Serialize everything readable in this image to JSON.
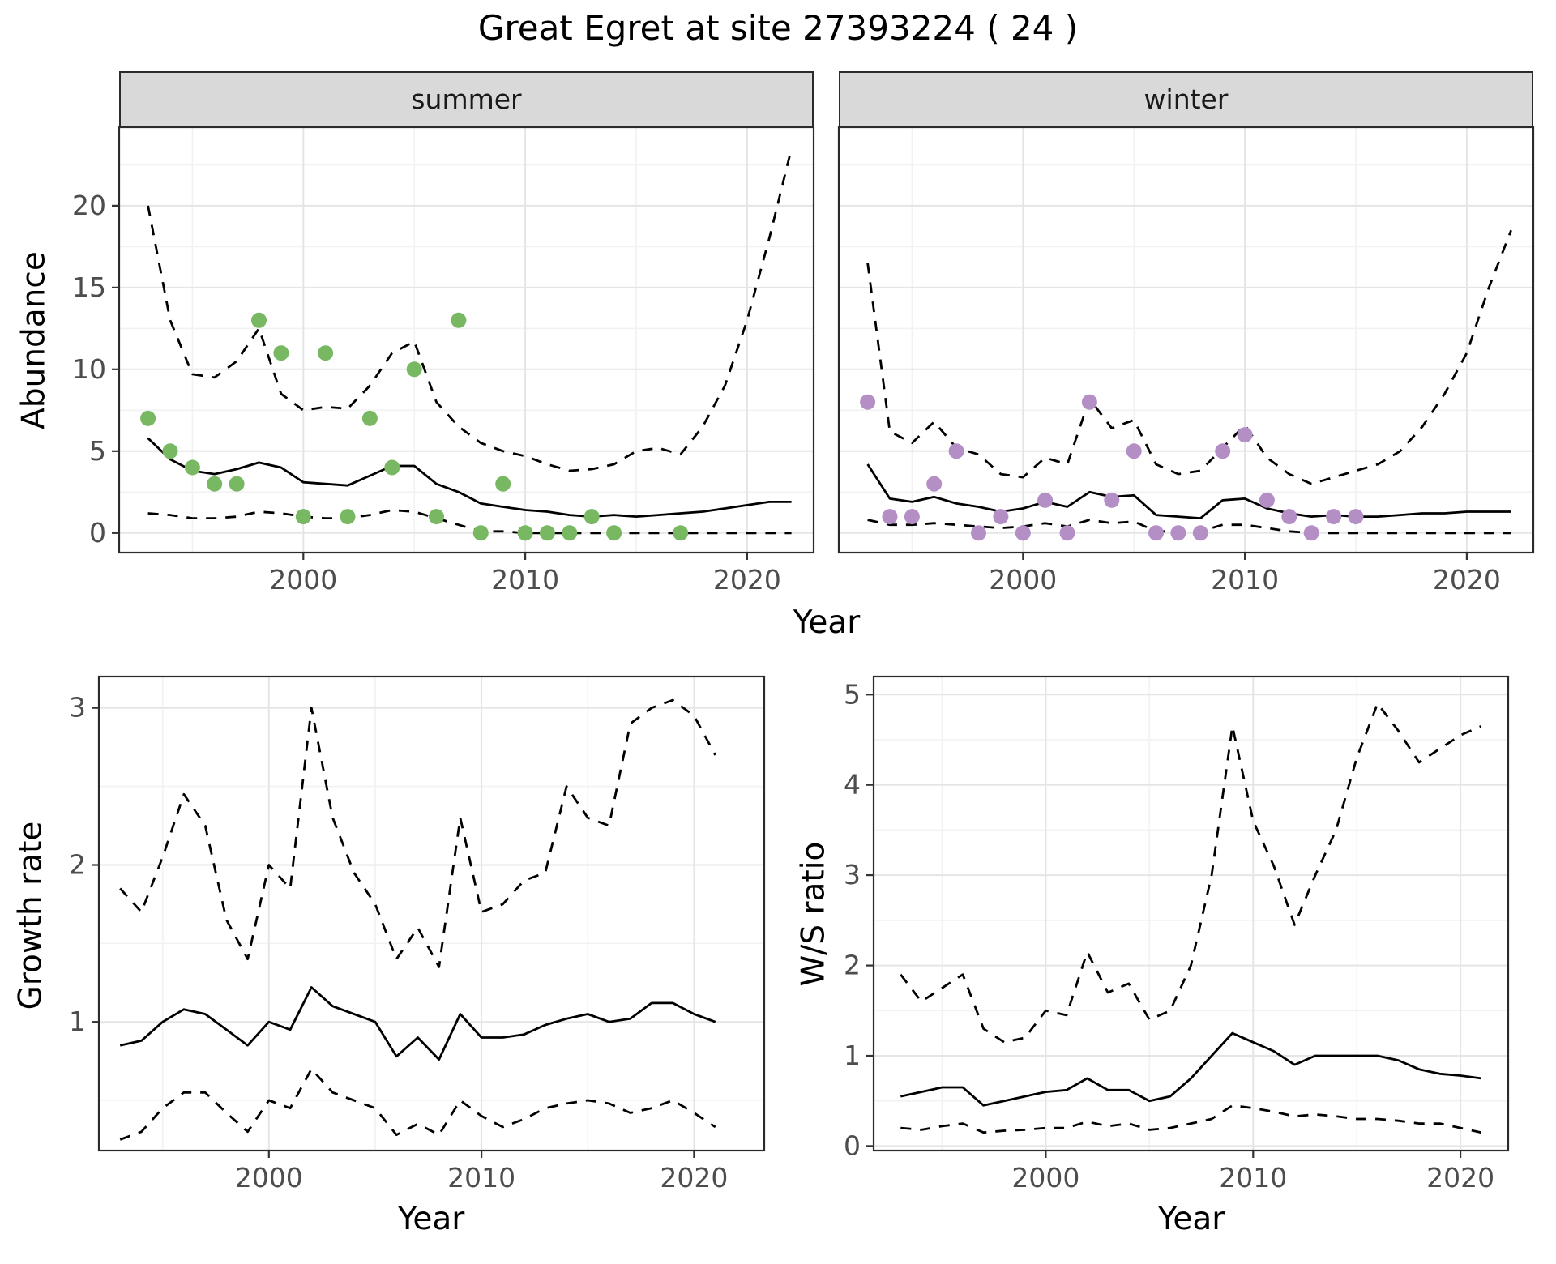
{
  "title": "Great Egret at site 27393224 ( 24 )",
  "colors": {
    "summer_points": "#78b862",
    "winter_points": "#b48fc6",
    "line": "#000000",
    "grid_major": "#e5e5e5",
    "grid_minor": "#f2f2f2",
    "strip_bg": "#d9d9d9",
    "panel_border": "#2b2b2b",
    "tick_text": "#4d4d4d"
  },
  "chart_data": [
    {
      "id": "abundance-summer",
      "type": "line",
      "facet": "summer",
      "xlabel": "Year",
      "ylabel": "Abundance",
      "xlim": [
        1991.7,
        2023.0
      ],
      "ylim": [
        -1.2,
        24.8
      ],
      "xticks": [
        2000,
        2010,
        2020
      ],
      "yticks": [
        0,
        5,
        10,
        15,
        20
      ],
      "grid": true,
      "legend": "none",
      "x": [
        1993,
        1994,
        1995,
        1996,
        1997,
        1998,
        1999,
        2000,
        2001,
        2002,
        2003,
        2004,
        2005,
        2006,
        2007,
        2008,
        2009,
        2010,
        2011,
        2012,
        2013,
        2014,
        2015,
        2016,
        2017,
        2018,
        2019,
        2020,
        2021,
        2022
      ],
      "series": [
        {
          "name": "upper-ci",
          "style": "dashed",
          "y": [
            20,
            13,
            9.7,
            9.5,
            10.5,
            12.5,
            8.5,
            7.5,
            7.7,
            7.6,
            9.0,
            11.0,
            11.7,
            8.0,
            6.5,
            5.5,
            5.0,
            4.7,
            4.2,
            3.8,
            3.9,
            4.2,
            5.0,
            5.2,
            4.8,
            6.5,
            9.0,
            13.0,
            18.0,
            23.5
          ]
        },
        {
          "name": "lower-ci",
          "style": "dashed",
          "y": [
            1.2,
            1.1,
            0.9,
            0.9,
            1.0,
            1.3,
            1.2,
            1.0,
            0.9,
            0.9,
            1.1,
            1.4,
            1.3,
            0.9,
            0.5,
            0.1,
            0.1,
            0,
            0,
            0,
            0,
            0,
            0,
            0,
            0,
            0,
            0,
            0,
            0,
            0
          ]
        },
        {
          "name": "fit",
          "style": "solid",
          "y": [
            5.8,
            4.5,
            3.8,
            3.6,
            3.9,
            4.3,
            4.0,
            3.1,
            3.0,
            2.9,
            3.5,
            4.1,
            4.1,
            3.0,
            2.5,
            1.8,
            1.6,
            1.4,
            1.3,
            1.1,
            1.0,
            1.1,
            1.0,
            1.1,
            1.2,
            1.3,
            1.5,
            1.7,
            1.9,
            1.9
          ]
        }
      ],
      "points": {
        "name": "observed-count",
        "color_key": "summer_points",
        "x": [
          1993,
          1994,
          1995,
          1996,
          1997,
          1998,
          1999,
          2000,
          2001,
          2002,
          2003,
          2004,
          2005,
          2006,
          2007,
          2008,
          2009,
          2010,
          2011,
          2012,
          2013,
          2014,
          2017
        ],
        "y": [
          7,
          5,
          4,
          3,
          3,
          13,
          11,
          1,
          11,
          1,
          7,
          4,
          10,
          1,
          13,
          0,
          3,
          0,
          0,
          0,
          1,
          0,
          0
        ]
      }
    },
    {
      "id": "abundance-winter",
      "type": "line",
      "facet": "winter",
      "xlabel": "Year",
      "ylabel": "Abundance",
      "xlim": [
        1991.7,
        2023.0
      ],
      "ylim": [
        -1.2,
        24.8
      ],
      "xticks": [
        2000,
        2010,
        2020
      ],
      "yticks": [
        0,
        5,
        10,
        15,
        20
      ],
      "grid": true,
      "legend": "none",
      "x": [
        1993,
        1994,
        1995,
        1996,
        1997,
        1998,
        1999,
        2000,
        2001,
        2002,
        2003,
        2004,
        2005,
        2006,
        2007,
        2008,
        2009,
        2010,
        2011,
        2012,
        2013,
        2014,
        2015,
        2016,
        2017,
        2018,
        2019,
        2020,
        2021,
        2022
      ],
      "series": [
        {
          "name": "upper-ci",
          "style": "dashed",
          "y": [
            16.5,
            6.2,
            5.5,
            6.8,
            5.2,
            4.8,
            3.6,
            3.4,
            4.6,
            4.2,
            8.2,
            6.4,
            6.9,
            4.2,
            3.6,
            3.8,
            5.2,
            6.6,
            4.6,
            3.6,
            3.0,
            3.4,
            3.8,
            4.2,
            5.0,
            6.5,
            8.5,
            11.0,
            15.0,
            18.5
          ]
        },
        {
          "name": "lower-ci",
          "style": "dashed",
          "y": [
            0.8,
            0.5,
            0.5,
            0.6,
            0.5,
            0.4,
            0.3,
            0.4,
            0.6,
            0.4,
            0.8,
            0.6,
            0.7,
            0.1,
            0.1,
            0.1,
            0.5,
            0.5,
            0.3,
            0.1,
            0,
            0,
            0,
            0,
            0,
            0,
            0,
            0,
            0,
            0
          ]
        },
        {
          "name": "fit",
          "style": "solid",
          "y": [
            4.2,
            2.1,
            1.9,
            2.2,
            1.8,
            1.6,
            1.3,
            1.5,
            1.9,
            1.6,
            2.5,
            2.2,
            2.3,
            1.1,
            1.0,
            0.9,
            2.0,
            2.1,
            1.5,
            1.2,
            1.0,
            1.1,
            1.0,
            1.0,
            1.1,
            1.2,
            1.2,
            1.3,
            1.3,
            1.3
          ]
        }
      ],
      "points": {
        "name": "observed-count",
        "color_key": "winter_points",
        "x": [
          1993,
          1994,
          1995,
          1996,
          1997,
          1998,
          1999,
          2000,
          2001,
          2002,
          2003,
          2004,
          2005,
          2006,
          2007,
          2008,
          2009,
          2010,
          2011,
          2012,
          2013,
          2014,
          2015
        ],
        "y": [
          8,
          1,
          1,
          3,
          5,
          0,
          1,
          0,
          2,
          0,
          8,
          2,
          5,
          0,
          0,
          0,
          5,
          6,
          2,
          1,
          0,
          1,
          1
        ]
      }
    },
    {
      "id": "growth-rate",
      "type": "line",
      "xlabel": "Year",
      "ylabel": "Growth rate",
      "xlim": [
        1992.0,
        2023.3
      ],
      "ylim": [
        0.18,
        3.2
      ],
      "xticks": [
        2000,
        2010,
        2020
      ],
      "yticks": [
        1,
        2,
        3
      ],
      "grid": true,
      "legend": "none",
      "x": [
        1993,
        1994,
        1995,
        1996,
        1997,
        1998,
        1999,
        2000,
        2001,
        2002,
        2003,
        2004,
        2005,
        2006,
        2007,
        2008,
        2009,
        2010,
        2011,
        2012,
        2013,
        2014,
        2015,
        2016,
        2017,
        2018,
        2019,
        2020,
        2021
      ],
      "series": [
        {
          "name": "upper-ci",
          "style": "dashed",
          "y": [
            1.85,
            1.7,
            2.05,
            2.45,
            2.25,
            1.65,
            1.4,
            2.0,
            1.85,
            3.0,
            2.3,
            1.95,
            1.75,
            1.4,
            1.6,
            1.35,
            2.3,
            1.7,
            1.75,
            1.9,
            1.95,
            2.5,
            2.3,
            2.25,
            2.9,
            3.0,
            3.05,
            2.95,
            2.7
          ]
        },
        {
          "name": "lower-ci",
          "style": "dashed",
          "y": [
            0.25,
            0.3,
            0.45,
            0.55,
            0.55,
            0.42,
            0.3,
            0.5,
            0.45,
            0.7,
            0.55,
            0.5,
            0.45,
            0.28,
            0.35,
            0.28,
            0.5,
            0.4,
            0.33,
            0.38,
            0.45,
            0.48,
            0.5,
            0.48,
            0.42,
            0.45,
            0.5,
            0.42,
            0.33
          ]
        },
        {
          "name": "fit",
          "style": "solid",
          "y": [
            0.85,
            0.88,
            1.0,
            1.08,
            1.05,
            0.95,
            0.85,
            1.0,
            0.95,
            1.22,
            1.1,
            1.05,
            1.0,
            0.78,
            0.9,
            0.76,
            1.05,
            0.9,
            0.9,
            0.92,
            0.98,
            1.02,
            1.05,
            1.0,
            1.02,
            1.12,
            1.12,
            1.05,
            1.0
          ]
        }
      ]
    },
    {
      "id": "ws-ratio",
      "type": "line",
      "xlabel": "Year",
      "ylabel": "W/S ratio",
      "xlim": [
        1991.7,
        2022.3
      ],
      "ylim": [
        -0.05,
        5.2
      ],
      "xticks": [
        2000,
        2010,
        2020
      ],
      "yticks": [
        0,
        1,
        2,
        3,
        4,
        5
      ],
      "grid": true,
      "legend": "none",
      "x": [
        1993,
        1994,
        1995,
        1996,
        1997,
        1998,
        1999,
        2000,
        2001,
        2002,
        2003,
        2004,
        2005,
        2006,
        2007,
        2008,
        2009,
        2010,
        2011,
        2012,
        2013,
        2014,
        2015,
        2016,
        2017,
        2018,
        2019,
        2020,
        2021
      ],
      "series": [
        {
          "name": "upper-ci",
          "style": "dashed",
          "y": [
            1.9,
            1.6,
            1.75,
            1.9,
            1.3,
            1.15,
            1.2,
            1.5,
            1.45,
            2.15,
            1.7,
            1.8,
            1.4,
            1.5,
            2.0,
            3.0,
            4.65,
            3.6,
            3.1,
            2.45,
            3.0,
            3.5,
            4.3,
            4.9,
            4.6,
            4.25,
            4.4,
            4.55,
            4.65
          ]
        },
        {
          "name": "lower-ci",
          "style": "dashed",
          "y": [
            0.2,
            0.18,
            0.22,
            0.25,
            0.15,
            0.17,
            0.18,
            0.2,
            0.2,
            0.27,
            0.22,
            0.25,
            0.18,
            0.2,
            0.25,
            0.3,
            0.45,
            0.42,
            0.38,
            0.33,
            0.35,
            0.33,
            0.3,
            0.3,
            0.28,
            0.25,
            0.25,
            0.2,
            0.15
          ]
        },
        {
          "name": "fit",
          "style": "solid",
          "y": [
            0.55,
            0.6,
            0.65,
            0.65,
            0.45,
            0.5,
            0.55,
            0.6,
            0.62,
            0.75,
            0.62,
            0.62,
            0.5,
            0.55,
            0.75,
            1.0,
            1.25,
            1.15,
            1.05,
            0.9,
            1.0,
            1.0,
            1.0,
            1.0,
            0.95,
            0.85,
            0.8,
            0.78,
            0.75
          ]
        }
      ]
    }
  ]
}
